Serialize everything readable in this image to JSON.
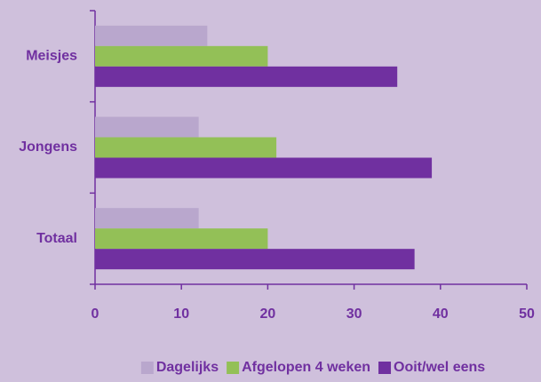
{
  "chart_data": {
    "type": "hbar",
    "categories": [
      "Meisjes",
      "Jongens",
      "Totaal"
    ],
    "series": [
      {
        "name": "Dagelijks",
        "color": "#b9a7cd",
        "values": [
          13,
          12,
          12
        ]
      },
      {
        "name": "Afgelopen 4 weken",
        "color": "#93c057",
        "values": [
          20,
          21,
          20
        ]
      },
      {
        "name": "Ooit/wel eens",
        "color": "#7030a0",
        "values": [
          35,
          39,
          37
        ]
      }
    ],
    "xlim": [
      0,
      50
    ],
    "xticks": [
      0,
      10,
      20,
      30,
      40,
      50
    ],
    "legend": "bottom"
  }
}
